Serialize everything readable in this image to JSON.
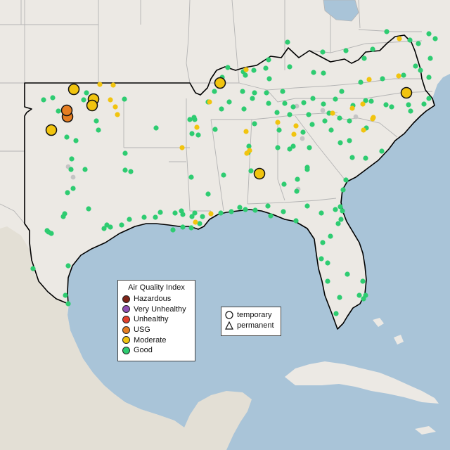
{
  "legend": {
    "title": "Air Quality Index",
    "categories": [
      {
        "label": "Hazardous",
        "color": "#7e2418"
      },
      {
        "label": "Very Unhealthy",
        "color": "#8f4fb3"
      },
      {
        "label": "Unhealthy",
        "color": "#e2402c"
      },
      {
        "label": "USG",
        "color": "#e67e22"
      },
      {
        "label": "Moderate",
        "color": "#f1c40f"
      },
      {
        "label": "Good",
        "color": "#2ecc71"
      }
    ],
    "no_data_color": "#c4c4c4",
    "monitor_types": [
      {
        "label": "temporary",
        "icon": "circle-icon"
      },
      {
        "label": "permanent",
        "icon": "triangle-icon"
      }
    ]
  },
  "colors": {
    "water": "#a9c4d8",
    "land": "#ece9e4",
    "mexico_land": "#e3dfd5",
    "state_border": "#b4b4b4",
    "region_outline": "#000000"
  }
}
